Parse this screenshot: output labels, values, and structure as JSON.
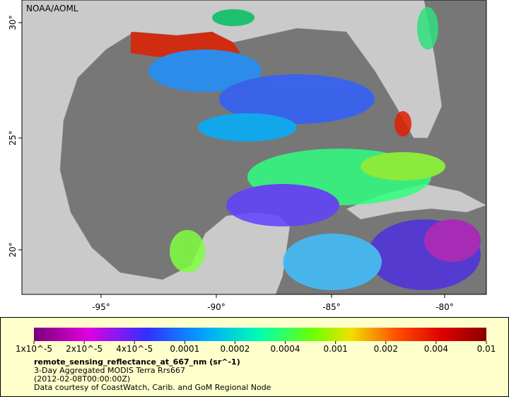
{
  "watermark": "NOAA/AOML",
  "map": {
    "x_labels": [
      "-95°",
      "-90°",
      "-85°",
      "-80°"
    ],
    "y_labels": [
      "30°",
      "25°",
      "20°"
    ]
  },
  "colorbar": {
    "labels": [
      "1x10^-5",
      "2x10^-5",
      "4x10^-5",
      "0.0001",
      "0.0002",
      "0.0004",
      "0.001",
      "0.002",
      "0.004",
      "0.01"
    ]
  },
  "caption": {
    "variable": "remote_sensing_reflectance_at_667_nm (sr^-1)",
    "product": "3-Day Aggregated MODIS Terra Rrs667",
    "date": "(2012-02-08T00:00:00Z)",
    "credit": "Data courtesy of CoastWatch, Carib. and GoM Regional Node"
  }
}
